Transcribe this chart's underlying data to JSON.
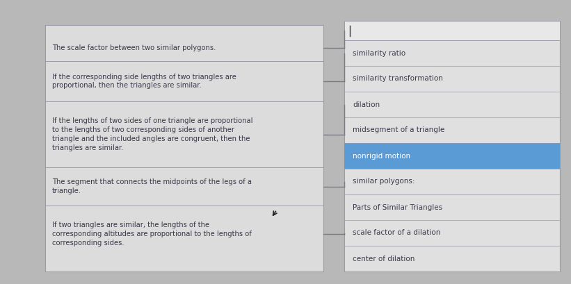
{
  "bg_color": "#b8b8b8",
  "left_panel_bg": "#dcdcdc",
  "right_panel_bg": "#e0e0e0",
  "highlight_color": "#5b9bd5",
  "highlight_text_color": "#ffffff",
  "left_definitions": [
    "The scale factor between two similar polygons.",
    "If the corresponding side lengths of two triangles are\nproportional, then the triangles are similar.",
    "If the lengths of two sides of one triangle are proportional\nto the lengths of two corresponding sides of another\ntriangle and the included angles are congruent, then the\ntriangles are similar.",
    "The segment that connects the midpoints of the legs of a\ntriangle.",
    "If two triangles are similar, the lengths of the\ncorresponding altitudes are proportional to the lengths of\ncorresponding sides."
  ],
  "right_terms": [
    "similarity ratio",
    "similarity transformation",
    "dilation",
    "midsegment of a triangle",
    "nonrigid motion",
    "similar polygons:",
    "Parts of Similar Triangles",
    "scale factor of a dilation",
    "center of dilation"
  ],
  "highlighted_term_index": 4,
  "text_color": "#3a3a4a",
  "divider_color": "#9a9aaa",
  "line_color": "#7a7a8a"
}
